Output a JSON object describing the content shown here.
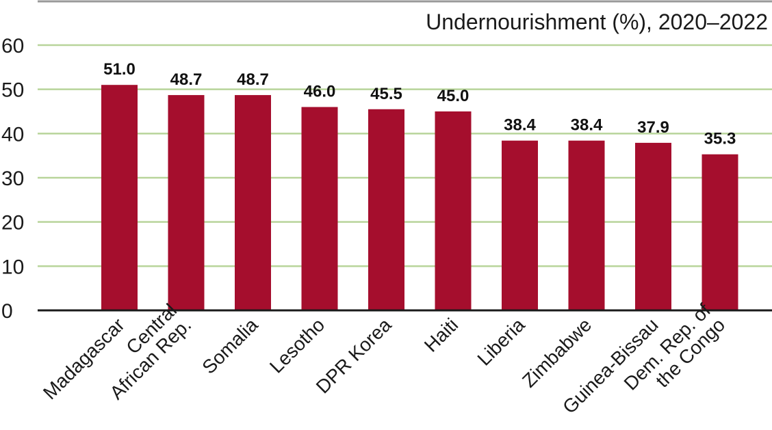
{
  "chart_data": {
    "type": "bar",
    "title": "Undernourishment (%), 2020–2022",
    "categories": [
      "Madagascar",
      "Central African Rep.",
      "Somalia",
      "Lesotho",
      "DPR Korea",
      "Haiti",
      "Liberia",
      "Zimbabwe",
      "Guinea-Bissau",
      "Dem. Rep. of the Congo"
    ],
    "category_lines": [
      [
        "Madagascar"
      ],
      [
        "Central",
        "African Rep."
      ],
      [
        "Somalia"
      ],
      [
        "Lesotho"
      ],
      [
        "DPR Korea"
      ],
      [
        "Haiti"
      ],
      [
        "Liberia"
      ],
      [
        "Zimbabwe"
      ],
      [
        "Guinea-Bissau"
      ],
      [
        "Dem. Rep. of",
        "the Congo"
      ]
    ],
    "values": [
      51.0,
      48.7,
      48.7,
      46.0,
      45.5,
      45.0,
      38.4,
      38.4,
      37.9,
      35.3
    ],
    "value_labels": [
      "51.0",
      "48.7",
      "48.7",
      "46.0",
      "45.5",
      "45.0",
      "38.4",
      "38.4",
      "37.9",
      "35.3"
    ],
    "yticks": [
      0,
      10,
      20,
      30,
      40,
      50,
      60
    ],
    "ylim": [
      0,
      60
    ],
    "xlabel": "",
    "ylabel": "",
    "grid": true,
    "colors": {
      "bar": "#a50e2d",
      "grid": "#b8d49a",
      "axis": "#1a1a1a",
      "top_rule": "#999999"
    }
  }
}
